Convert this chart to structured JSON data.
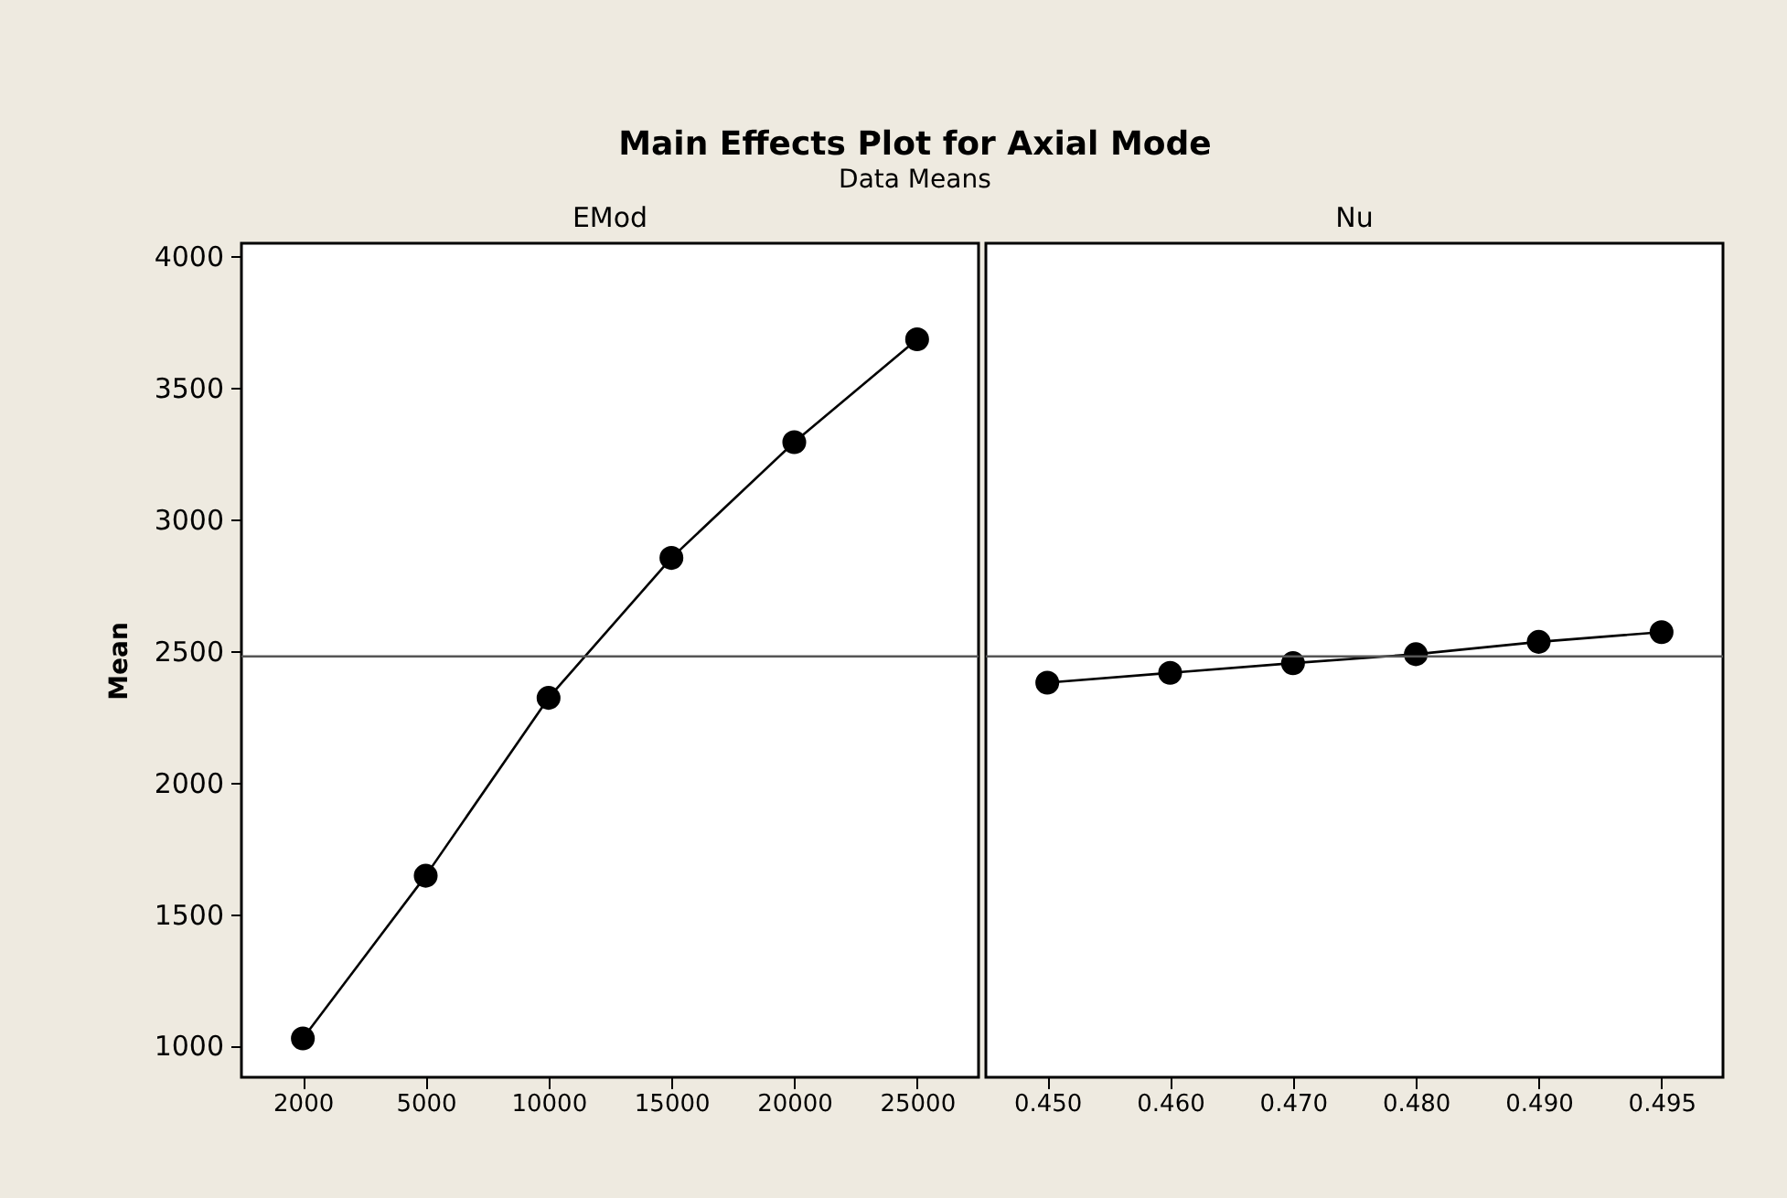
{
  "chart_data": [
    {
      "type": "line",
      "title": "Main Effects Plot for Axial Mode",
      "subtitle": "Data Means",
      "xlabel": "EMod",
      "ylabel": "Mean",
      "categories": [
        "2000",
        "5000",
        "10000",
        "15000",
        "20000",
        "25000"
      ],
      "series": [
        {
          "color": "#000000",
          "values": [
            1028,
            1646,
            2322,
            2854,
            3294,
            3685
          ]
        }
      ],
      "ylim": [
        880,
        4050
      ],
      "yticks": [
        1000,
        1500,
        2000,
        2500,
        3000,
        3500,
        4000
      ],
      "ref_lines": [
        {
          "axis": "y",
          "value": 2480,
          "color": "#555555"
        }
      ],
      "marker": "circle",
      "line_style": "solid",
      "grid": false
    },
    {
      "type": "line",
      "xlabel": "Nu",
      "categories": [
        "0.450",
        "0.460",
        "0.470",
        "0.480",
        "0.490",
        "0.495"
      ],
      "series": [
        {
          "color": "#000000",
          "values": [
            2380,
            2417,
            2454,
            2488,
            2535,
            2572
          ]
        }
      ],
      "ylim": [
        880,
        4050
      ],
      "yticks": [
        1000,
        1500,
        2000,
        2500,
        3000,
        3500,
        4000
      ],
      "ref_lines": [
        {
          "axis": "y",
          "value": 2480,
          "color": "#555555"
        }
      ],
      "marker": "circle",
      "line_style": "solid",
      "grid": false,
      "tick_labels": "x"
    }
  ]
}
